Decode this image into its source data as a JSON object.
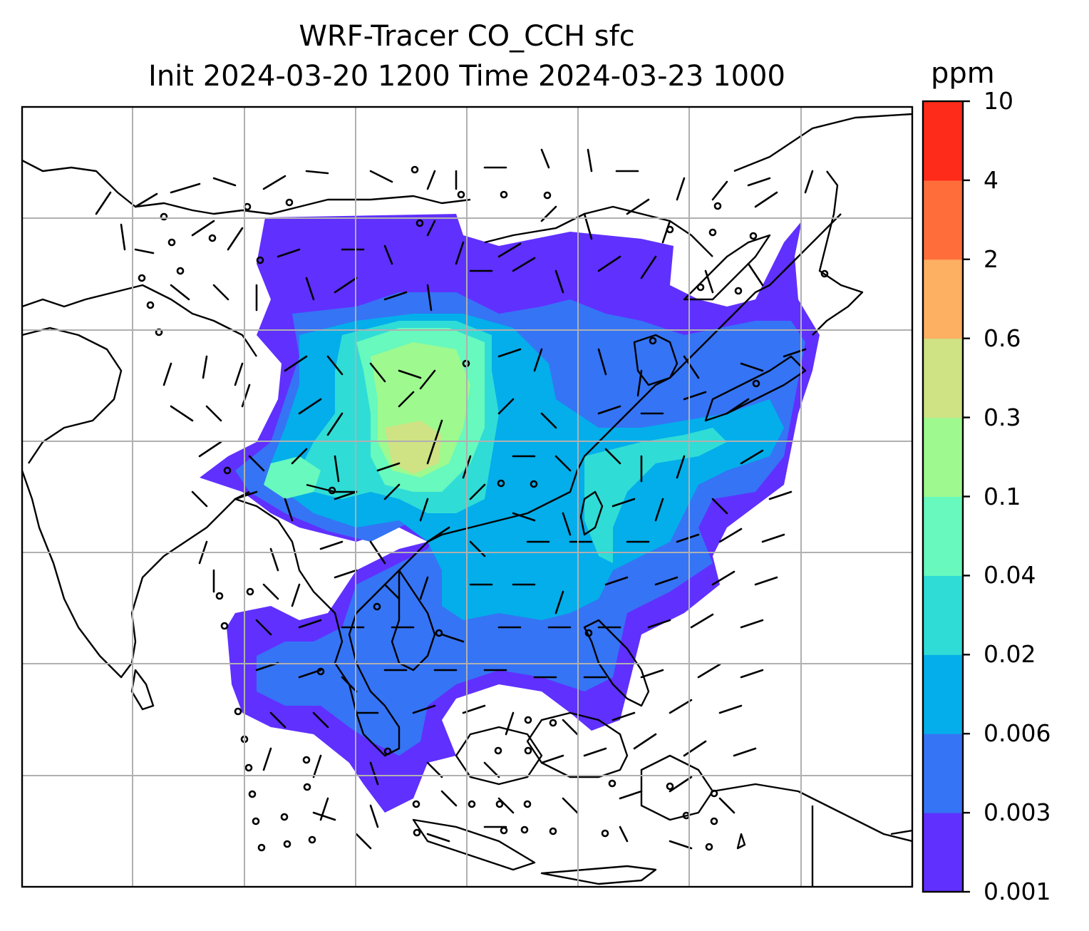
{
  "title": {
    "line1": "WRF-Tracer CO_CCH sfc",
    "line2": "Init 2024-03-20 1200 Time 2024-03-23 1000"
  },
  "colorbar": {
    "unit": "ppm",
    "levels": [
      "0.001",
      "0.003",
      "0.006",
      "0.02",
      "0.04",
      "0.1",
      "0.3",
      "0.6",
      "2",
      "4",
      "10"
    ],
    "colors": [
      "#6030ff",
      "#3574f5",
      "#03aeea",
      "#30dcd6",
      "#67f9bd",
      "#9ef98f",
      "#cfe284",
      "#fdaf62",
      "#ff6e3a",
      "#ff2b1a"
    ]
  },
  "map": {
    "layers": [
      "coastline-outline",
      "country-borders",
      "co-tracer-concentration-fill",
      "wind-barbs",
      "lat-lon-gridlines"
    ],
    "gridlines": "on"
  }
}
